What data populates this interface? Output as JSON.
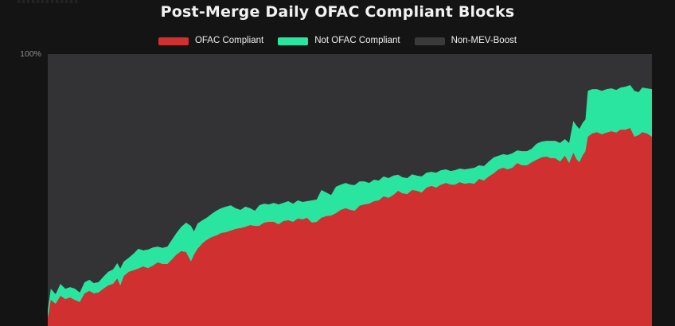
{
  "header": {
    "title": "Post-Merge Daily OFAC Compliant Blocks"
  },
  "y_axis": {
    "top_tick_label": "100%"
  },
  "colors": {
    "page_bg": "#141414",
    "plot_bg": "#333335",
    "title_text": "#f2f2f2",
    "legend_text": "#f0f0f0",
    "tick_label": "#8f8f8f"
  },
  "chart_data": {
    "type": "area",
    "stacked": true,
    "title": "Post-Merge Daily OFAC Compliant Blocks",
    "legend_position": "top",
    "grid": false,
    "y_axis": {
      "min": 0,
      "max": 100,
      "unit": "%",
      "visible_tick_labels": [
        "100%"
      ]
    },
    "x_axis": {
      "visible_tick_labels": []
    },
    "series": [
      {
        "name": "OFAC Compliant",
        "color": "#d13030",
        "role": "bottom-stack"
      },
      {
        "name": "Not OFAC Compliant",
        "color": "#2ae5a0",
        "role": "middle-stack"
      },
      {
        "name": "Non-MEV-Boost",
        "color": "#333335",
        "role": "remainder-to-100",
        "legend_swatch_color": "#3a3a3a"
      }
    ],
    "points_format": [
      "x_fraction_of_timeline",
      "ofac_compliant_pct",
      "ofac_plus_not_ofac_cumulative_pct"
    ],
    "points": [
      [
        0.0,
        2.9,
        5.8
      ],
      [
        0.005,
        9.6,
        13.7
      ],
      [
        0.013,
        8.2,
        11.7
      ],
      [
        0.021,
        11.1,
        15.5
      ],
      [
        0.029,
        9.9,
        13.7
      ],
      [
        0.037,
        10.5,
        14.3
      ],
      [
        0.045,
        9.6,
        13.7
      ],
      [
        0.053,
        8.8,
        12.3
      ],
      [
        0.061,
        12.0,
        16.1
      ],
      [
        0.069,
        12.9,
        17.0
      ],
      [
        0.076,
        12.0,
        15.8
      ],
      [
        0.084,
        12.3,
        16.1
      ],
      [
        0.092,
        13.7,
        18.1
      ],
      [
        0.1,
        14.9,
        19.9
      ],
      [
        0.108,
        15.5,
        20.8
      ],
      [
        0.115,
        17.5,
        23.1
      ],
      [
        0.12,
        14.9,
        21.1
      ],
      [
        0.126,
        18.4,
        23.7
      ],
      [
        0.134,
        19.9,
        25.1
      ],
      [
        0.142,
        20.5,
        26.6
      ],
      [
        0.15,
        21.1,
        28.4
      ],
      [
        0.158,
        21.9,
        27.8
      ],
      [
        0.166,
        21.3,
        28.1
      ],
      [
        0.174,
        22.2,
        28.9
      ],
      [
        0.182,
        23.4,
        29.2
      ],
      [
        0.19,
        22.8,
        28.7
      ],
      [
        0.198,
        22.8,
        29.2
      ],
      [
        0.206,
        24.6,
        31.9
      ],
      [
        0.213,
        26.3,
        34.2
      ],
      [
        0.221,
        27.5,
        36.5
      ],
      [
        0.229,
        27.2,
        38.0
      ],
      [
        0.237,
        23.7,
        36.8
      ],
      [
        0.242,
        26.3,
        34.8
      ],
      [
        0.248,
        28.4,
        37.7
      ],
      [
        0.256,
        30.4,
        38.9
      ],
      [
        0.263,
        31.6,
        39.8
      ],
      [
        0.271,
        32.7,
        41.2
      ],
      [
        0.279,
        33.3,
        42.4
      ],
      [
        0.287,
        34.2,
        43.3
      ],
      [
        0.295,
        34.5,
        43.9
      ],
      [
        0.303,
        35.1,
        44.4
      ],
      [
        0.311,
        35.7,
        43.3
      ],
      [
        0.319,
        36.0,
        42.7
      ],
      [
        0.327,
        36.5,
        43.9
      ],
      [
        0.335,
        37.1,
        43.3
      ],
      [
        0.343,
        36.8,
        42.4
      ],
      [
        0.35,
        36.8,
        44.4
      ],
      [
        0.358,
        38.0,
        45.0
      ],
      [
        0.366,
        38.3,
        44.7
      ],
      [
        0.374,
        38.3,
        45.3
      ],
      [
        0.382,
        37.4,
        44.7
      ],
      [
        0.39,
        38.6,
        45.3
      ],
      [
        0.398,
        38.9,
        45.9
      ],
      [
        0.406,
        38.3,
        45.0
      ],
      [
        0.414,
        39.5,
        46.2
      ],
      [
        0.422,
        39.2,
        45.6
      ],
      [
        0.429,
        39.8,
        45.9
      ],
      [
        0.437,
        38.0,
        46.2
      ],
      [
        0.445,
        38.3,
        46.5
      ],
      [
        0.453,
        39.8,
        50.0
      ],
      [
        0.461,
        40.4,
        49.1
      ],
      [
        0.469,
        40.6,
        48.2
      ],
      [
        0.477,
        41.5,
        51.2
      ],
      [
        0.485,
        42.7,
        52.0
      ],
      [
        0.493,
        43.3,
        52.6
      ],
      [
        0.501,
        42.7,
        52.0
      ],
      [
        0.508,
        42.4,
        51.8
      ],
      [
        0.516,
        44.2,
        53.2
      ],
      [
        0.524,
        44.7,
        53.2
      ],
      [
        0.532,
        45.0,
        52.6
      ],
      [
        0.54,
        45.9,
        53.8
      ],
      [
        0.548,
        46.2,
        53.5
      ],
      [
        0.556,
        47.7,
        55.0
      ],
      [
        0.564,
        47.1,
        54.4
      ],
      [
        0.572,
        48.2,
        55.3
      ],
      [
        0.58,
        49.7,
        55.6
      ],
      [
        0.587,
        48.8,
        54.7
      ],
      [
        0.595,
        48.5,
        54.4
      ],
      [
        0.603,
        50.0,
        55.8
      ],
      [
        0.611,
        49.7,
        55.3
      ],
      [
        0.619,
        49.1,
        55.0
      ],
      [
        0.627,
        50.9,
        56.4
      ],
      [
        0.635,
        51.5,
        56.7
      ],
      [
        0.643,
        50.9,
        56.4
      ],
      [
        0.651,
        52.0,
        57.3
      ],
      [
        0.659,
        52.6,
        57.6
      ],
      [
        0.667,
        52.0,
        57.0
      ],
      [
        0.674,
        52.0,
        57.3
      ],
      [
        0.682,
        52.9,
        57.9
      ],
      [
        0.69,
        52.3,
        57.6
      ],
      [
        0.698,
        52.6,
        57.9
      ],
      [
        0.706,
        52.3,
        58.2
      ],
      [
        0.714,
        54.1,
        59.1
      ],
      [
        0.722,
        53.5,
        58.8
      ],
      [
        0.73,
        55.0,
        60.5
      ],
      [
        0.738,
        56.1,
        62.0
      ],
      [
        0.746,
        57.6,
        62.6
      ],
      [
        0.754,
        58.2,
        63.2
      ],
      [
        0.761,
        57.6,
        62.9
      ],
      [
        0.769,
        58.2,
        63.5
      ],
      [
        0.777,
        59.9,
        64.6
      ],
      [
        0.785,
        59.1,
        64.3
      ],
      [
        0.793,
        59.1,
        64.3
      ],
      [
        0.801,
        60.2,
        65.2
      ],
      [
        0.809,
        61.1,
        67.0
      ],
      [
        0.817,
        62.0,
        67.8
      ],
      [
        0.825,
        62.3,
        68.1
      ],
      [
        0.833,
        61.7,
        68.1
      ],
      [
        0.84,
        61.7,
        68.1
      ],
      [
        0.848,
        60.5,
        67.3
      ],
      [
        0.856,
        62.6,
        68.7
      ],
      [
        0.863,
        59.9,
        67.3
      ],
      [
        0.87,
        63.7,
        75.4
      ],
      [
        0.875,
        61.4,
        73.7
      ],
      [
        0.88,
        60.2,
        72.5
      ],
      [
        0.885,
        62.6,
        74.6
      ],
      [
        0.89,
        64.3,
        76.0
      ],
      [
        0.894,
        69.6,
        86.5
      ],
      [
        0.901,
        70.8,
        87.1
      ],
      [
        0.909,
        71.3,
        87.1
      ],
      [
        0.917,
        70.5,
        86.5
      ],
      [
        0.925,
        71.1,
        87.1
      ],
      [
        0.933,
        71.6,
        87.4
      ],
      [
        0.941,
        71.1,
        86.8
      ],
      [
        0.948,
        72.2,
        87.7
      ],
      [
        0.956,
        72.2,
        88.0
      ],
      [
        0.964,
        72.8,
        88.6
      ],
      [
        0.971,
        69.6,
        86.5
      ],
      [
        0.978,
        70.2,
        86.0
      ],
      [
        0.984,
        71.3,
        87.7
      ],
      [
        0.992,
        70.8,
        87.4
      ],
      [
        1.0,
        69.6,
        87.1
      ]
    ]
  }
}
